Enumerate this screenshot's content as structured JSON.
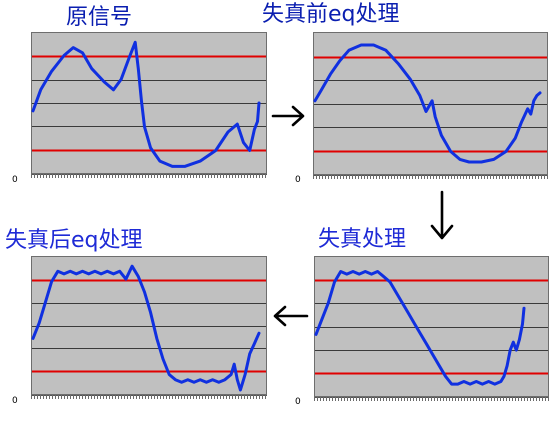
{
  "colors": {
    "title_text": "#1e2ad6",
    "title_text_dark": "#0a1eb0",
    "plot_bg": "#c0c0c0",
    "grid_line": "#3a3a3a",
    "reference_line": "#e00000",
    "waveform": "#1030e0",
    "arrow": "#000000"
  },
  "panels": [
    {
      "id": "original",
      "title": "原信号",
      "zero_label": "0",
      "waveform": [
        [
          0,
          28
        ],
        [
          5,
          20
        ],
        [
          12,
          13
        ],
        [
          20,
          7
        ],
        [
          26,
          4
        ],
        [
          32,
          6
        ],
        [
          38,
          12
        ],
        [
          46,
          17
        ],
        [
          52,
          20
        ],
        [
          57,
          16
        ],
        [
          62,
          8
        ],
        [
          66,
          2
        ],
        [
          68,
          12
        ],
        [
          70,
          24
        ],
        [
          72,
          34
        ],
        [
          76,
          42
        ],
        [
          82,
          47
        ],
        [
          90,
          49
        ],
        [
          98,
          49
        ],
        [
          108,
          47
        ],
        [
          118,
          43
        ],
        [
          126,
          36
        ],
        [
          132,
          33
        ],
        [
          136,
          40
        ],
        [
          140,
          43
        ],
        [
          143,
          35
        ],
        [
          145,
          32
        ],
        [
          146,
          25
        ]
      ]
    },
    {
      "id": "pre-eq",
      "title": "失真前eq处理",
      "zero_label": "0",
      "waveform": [
        [
          0,
          24
        ],
        [
          4,
          20
        ],
        [
          10,
          14
        ],
        [
          16,
          9
        ],
        [
          22,
          5
        ],
        [
          30,
          3
        ],
        [
          38,
          3
        ],
        [
          46,
          5
        ],
        [
          54,
          10
        ],
        [
          62,
          16
        ],
        [
          68,
          22
        ],
        [
          72,
          28
        ],
        [
          74,
          26
        ],
        [
          76,
          24
        ],
        [
          78,
          30
        ],
        [
          82,
          37
        ],
        [
          88,
          43
        ],
        [
          94,
          46
        ],
        [
          100,
          47
        ],
        [
          108,
          47
        ],
        [
          116,
          46
        ],
        [
          124,
          43
        ],
        [
          130,
          38
        ],
        [
          134,
          32
        ],
        [
          138,
          27
        ],
        [
          140,
          29
        ],
        [
          142,
          24
        ],
        [
          144,
          22
        ],
        [
          146,
          21
        ]
      ]
    },
    {
      "id": "post-eq",
      "title": "失真后eq处理",
      "zero_label": "0",
      "waveform": [
        [
          0,
          30
        ],
        [
          4,
          24
        ],
        [
          8,
          16
        ],
        [
          12,
          8
        ],
        [
          16,
          4
        ],
        [
          20,
          5
        ],
        [
          24,
          4
        ],
        [
          28,
          5
        ],
        [
          32,
          4
        ],
        [
          36,
          5
        ],
        [
          40,
          4
        ],
        [
          44,
          5
        ],
        [
          48,
          4
        ],
        [
          52,
          5
        ],
        [
          56,
          4
        ],
        [
          60,
          7
        ],
        [
          64,
          2
        ],
        [
          68,
          6
        ],
        [
          72,
          12
        ],
        [
          76,
          20
        ],
        [
          80,
          30
        ],
        [
          84,
          38
        ],
        [
          88,
          44
        ],
        [
          92,
          46
        ],
        [
          96,
          47
        ],
        [
          100,
          46
        ],
        [
          104,
          47
        ],
        [
          108,
          46
        ],
        [
          112,
          47
        ],
        [
          116,
          46
        ],
        [
          120,
          47
        ],
        [
          124,
          46
        ],
        [
          128,
          44
        ],
        [
          130,
          40
        ],
        [
          132,
          46
        ],
        [
          134,
          50
        ],
        [
          137,
          44
        ],
        [
          140,
          36
        ],
        [
          143,
          32
        ],
        [
          146,
          28
        ]
      ]
    },
    {
      "id": "distortion",
      "title": "失真处理",
      "zero_label": "0",
      "waveform": [
        [
          0,
          28
        ],
        [
          4,
          22
        ],
        [
          8,
          16
        ],
        [
          12,
          8
        ],
        [
          16,
          4
        ],
        [
          20,
          5
        ],
        [
          24,
          4
        ],
        [
          28,
          5
        ],
        [
          32,
          4
        ],
        [
          36,
          5
        ],
        [
          40,
          4
        ],
        [
          44,
          6
        ],
        [
          48,
          8
        ],
        [
          52,
          12
        ],
        [
          56,
          16
        ],
        [
          60,
          20
        ],
        [
          64,
          24
        ],
        [
          68,
          28
        ],
        [
          72,
          32
        ],
        [
          76,
          36
        ],
        [
          80,
          40
        ],
        [
          84,
          44
        ],
        [
          88,
          47
        ],
        [
          92,
          47
        ],
        [
          96,
          46
        ],
        [
          100,
          47
        ],
        [
          104,
          46
        ],
        [
          108,
          47
        ],
        [
          112,
          46
        ],
        [
          116,
          47
        ],
        [
          120,
          46
        ],
        [
          122,
          44
        ],
        [
          124,
          40
        ],
        [
          126,
          34
        ],
        [
          128,
          31
        ],
        [
          130,
          34
        ],
        [
          132,
          30
        ],
        [
          134,
          24
        ],
        [
          135,
          18
        ]
      ]
    }
  ]
}
